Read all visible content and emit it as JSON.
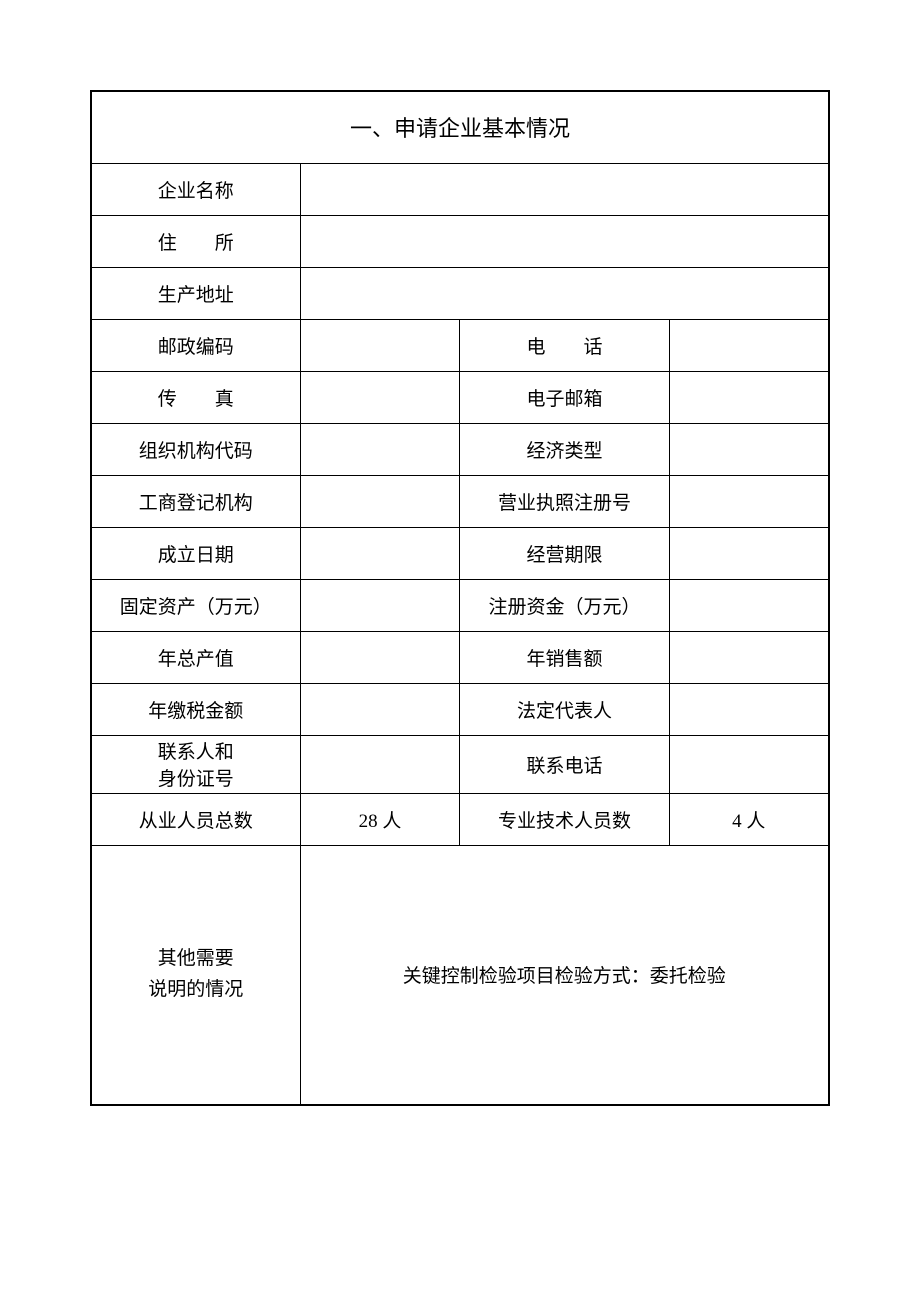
{
  "form": {
    "title": "一、申请企业基本情况",
    "rows": [
      {
        "type": "full",
        "label": "企业名称",
        "value": ""
      },
      {
        "type": "full",
        "label": "住　　所",
        "value": ""
      },
      {
        "type": "full",
        "label": "生产地址",
        "value": ""
      },
      {
        "type": "pair",
        "label1": "邮政编码",
        "value1": "",
        "label2": "电　　话",
        "value2": ""
      },
      {
        "type": "pair",
        "label1": "传　　真",
        "value1": "",
        "label2": "电子邮箱",
        "value2": ""
      },
      {
        "type": "pair",
        "label1": "组织机构代码",
        "value1": "",
        "label2": "经济类型",
        "value2": ""
      },
      {
        "type": "pair",
        "label1": "工商登记机构",
        "value1": "",
        "label2": "营业执照注册号",
        "value2": ""
      },
      {
        "type": "pair",
        "label1": "成立日期",
        "value1": "",
        "label2": "经营期限",
        "value2": ""
      },
      {
        "type": "pair",
        "label1": "固定资产（万元）",
        "value1": "",
        "label2": "注册资金（万元）",
        "value2": ""
      },
      {
        "type": "pair",
        "label1": "年总产值",
        "value1": "",
        "label2": "年销售额",
        "value2": ""
      },
      {
        "type": "pair",
        "label1": "年缴税金额",
        "value1": "",
        "label2": "法定代表人",
        "value2": ""
      },
      {
        "type": "pair",
        "label1_line1": "联系人和",
        "label1_line2": "身份证号",
        "value1": "",
        "label2": "联系电话",
        "value2": "",
        "multiline": true
      },
      {
        "type": "pair",
        "label1": "从业人员总数",
        "value1": "28 人",
        "label2": "专业技术人员数",
        "value2": "4 人"
      }
    ],
    "notes": {
      "label_line1": "其他需要",
      "label_line2": "说明的情况",
      "content": "关键控制检验项目检验方式：委托检验"
    }
  },
  "style": {
    "border_color": "#000000",
    "background_color": "#ffffff",
    "text_color": "#000000",
    "title_fontsize": 22,
    "cell_fontsize": 19,
    "notes_fontsize": 14
  }
}
